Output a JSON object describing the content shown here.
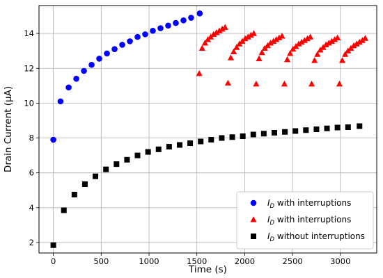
{
  "chart_data": {
    "type": "scatter",
    "xlabel": "Time (s)",
    "ylabel": "Drain Current (μA)",
    "xlim": [
      -150,
      3380
    ],
    "ylim": [
      1.4,
      15.6
    ],
    "xticks": [
      0,
      500,
      1000,
      1500,
      2000,
      2500,
      3000
    ],
    "yticks": [
      2,
      4,
      6,
      8,
      10,
      12,
      14
    ],
    "grid": true,
    "legend_position": "lower-right",
    "series": [
      {
        "name": "I_D with interruptions",
        "legend_main": "I",
        "legend_sub": "D",
        "legend_rest": " with interruptions",
        "marker": "circle",
        "color": "#0000ff",
        "points": [
          [
            0,
            7.9
          ],
          [
            75,
            10.1
          ],
          [
            160,
            10.9
          ],
          [
            240,
            11.4
          ],
          [
            320,
            11.85
          ],
          [
            400,
            12.2
          ],
          [
            480,
            12.55
          ],
          [
            560,
            12.85
          ],
          [
            640,
            13.1
          ],
          [
            720,
            13.35
          ],
          [
            800,
            13.55
          ],
          [
            880,
            13.8
          ],
          [
            960,
            13.95
          ],
          [
            1040,
            14.15
          ],
          [
            1120,
            14.3
          ],
          [
            1200,
            14.45
          ],
          [
            1280,
            14.6
          ],
          [
            1360,
            14.75
          ],
          [
            1440,
            14.9
          ],
          [
            1530,
            15.15
          ]
        ]
      },
      {
        "name": "I_D with interruptions",
        "legend_main": "I",
        "legend_sub": "D",
        "legend_rest": " with interruptions",
        "marker": "triangle",
        "color": "#ff0000",
        "points": [
          [
            1525,
            11.7
          ],
          [
            1555,
            13.15
          ],
          [
            1585,
            13.45
          ],
          [
            1615,
            13.65
          ],
          [
            1645,
            13.8
          ],
          [
            1675,
            13.95
          ],
          [
            1705,
            14.05
          ],
          [
            1735,
            14.15
          ],
          [
            1765,
            14.25
          ],
          [
            1795,
            14.35
          ],
          [
            1825,
            11.15
          ],
          [
            1855,
            12.6
          ],
          [
            1885,
            12.95
          ],
          [
            1915,
            13.2
          ],
          [
            1945,
            13.4
          ],
          [
            1975,
            13.55
          ],
          [
            2005,
            13.7
          ],
          [
            2035,
            13.8
          ],
          [
            2065,
            13.9
          ],
          [
            2095,
            14.0
          ],
          [
            2120,
            11.1
          ],
          [
            2150,
            12.55
          ],
          [
            2180,
            12.9
          ],
          [
            2210,
            13.15
          ],
          [
            2240,
            13.3
          ],
          [
            2270,
            13.45
          ],
          [
            2300,
            13.55
          ],
          [
            2330,
            13.65
          ],
          [
            2360,
            13.75
          ],
          [
            2390,
            13.85
          ],
          [
            2415,
            11.1
          ],
          [
            2445,
            12.5
          ],
          [
            2475,
            12.85
          ],
          [
            2505,
            13.1
          ],
          [
            2535,
            13.25
          ],
          [
            2565,
            13.4
          ],
          [
            2595,
            13.5
          ],
          [
            2625,
            13.6
          ],
          [
            2655,
            13.7
          ],
          [
            2685,
            13.8
          ],
          [
            2700,
            11.1
          ],
          [
            2730,
            12.45
          ],
          [
            2760,
            12.8
          ],
          [
            2790,
            13.05
          ],
          [
            2820,
            13.2
          ],
          [
            2850,
            13.35
          ],
          [
            2880,
            13.45
          ],
          [
            2910,
            13.55
          ],
          [
            2940,
            13.65
          ],
          [
            2970,
            13.75
          ],
          [
            2990,
            11.1
          ],
          [
            3020,
            12.45
          ],
          [
            3050,
            12.8
          ],
          [
            3080,
            13.0
          ],
          [
            3110,
            13.15
          ],
          [
            3140,
            13.3
          ],
          [
            3170,
            13.4
          ],
          [
            3200,
            13.5
          ],
          [
            3230,
            13.6
          ],
          [
            3260,
            13.72
          ]
        ]
      },
      {
        "name": "I_D without interruptions",
        "legend_main": "I",
        "legend_sub": "D",
        "legend_rest": " without interruptions",
        "marker": "square",
        "color": "#000000",
        "points": [
          [
            0,
            1.85
          ],
          [
            110,
            3.85
          ],
          [
            220,
            4.75
          ],
          [
            330,
            5.35
          ],
          [
            440,
            5.8
          ],
          [
            550,
            6.2
          ],
          [
            660,
            6.5
          ],
          [
            770,
            6.75
          ],
          [
            880,
            7.0
          ],
          [
            990,
            7.2
          ],
          [
            1100,
            7.35
          ],
          [
            1210,
            7.5
          ],
          [
            1320,
            7.6
          ],
          [
            1430,
            7.7
          ],
          [
            1540,
            7.8
          ],
          [
            1650,
            7.9
          ],
          [
            1760,
            8.0
          ],
          [
            1870,
            8.05
          ],
          [
            1980,
            8.1
          ],
          [
            2090,
            8.2
          ],
          [
            2200,
            8.25
          ],
          [
            2310,
            8.3
          ],
          [
            2420,
            8.35
          ],
          [
            2530,
            8.4
          ],
          [
            2640,
            8.45
          ],
          [
            2750,
            8.5
          ],
          [
            2860,
            8.55
          ],
          [
            2970,
            8.6
          ],
          [
            3080,
            8.62
          ],
          [
            3200,
            8.68
          ]
        ]
      }
    ]
  }
}
